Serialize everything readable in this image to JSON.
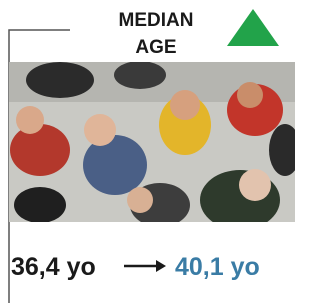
{
  "header": {
    "title_lines": [
      "MEDIAN",
      "AGE"
    ]
  },
  "comparison": {
    "from": "36,4 yo",
    "to": "40,1 yo"
  }
}
